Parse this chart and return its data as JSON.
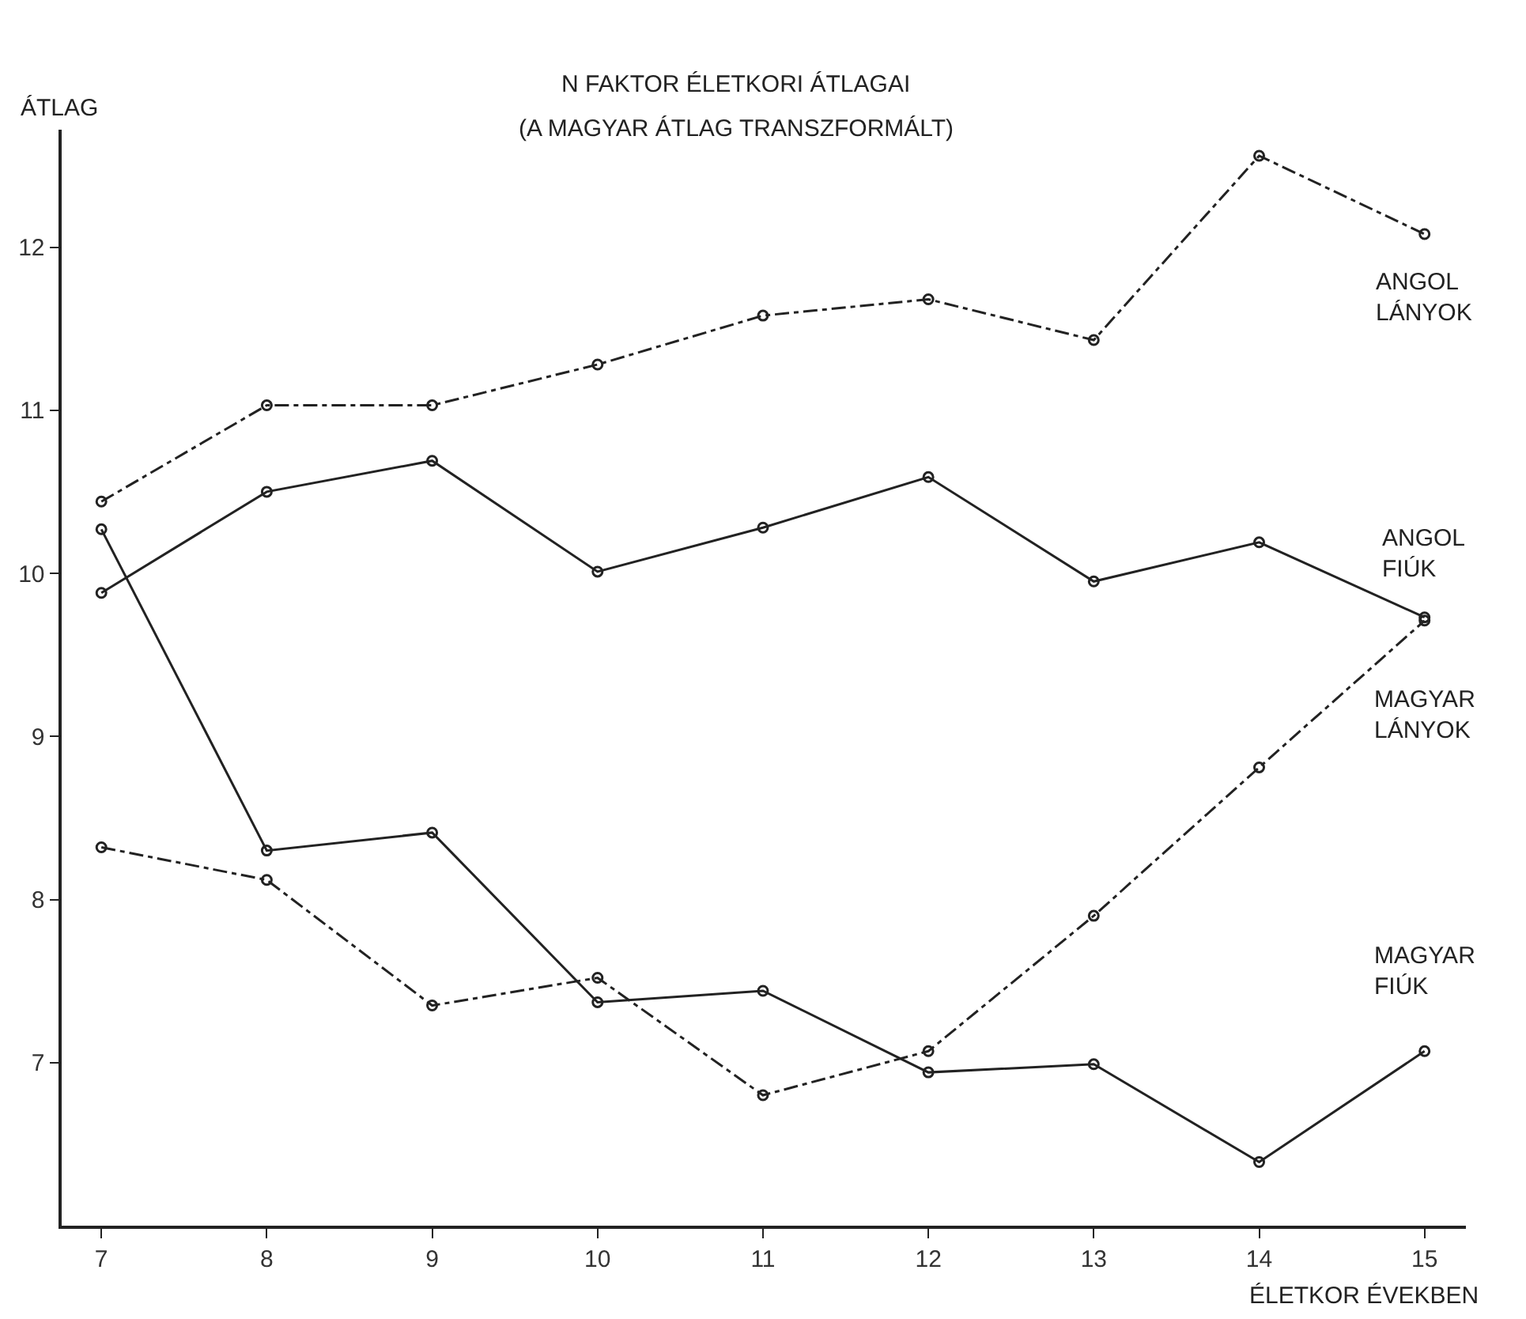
{
  "chart_data": {
    "type": "line",
    "title": "N FAKTOR ÉLETKORI ÁTLAGAI",
    "subtitle": "(A MAGYAR ÁTLAG TRANSZFORMÁLT)",
    "xlabel": "ÉLETKOR ÉVEKBEN",
    "ylabel": "ÁTLAG",
    "x": [
      7,
      8,
      9,
      10,
      11,
      12,
      13,
      14,
      15
    ],
    "series": [
      {
        "name": "ANGOL LÁNYOK",
        "color": "#222222",
        "line_style": "dashdot",
        "values": [
          10.44,
          11.03,
          11.03,
          11.28,
          11.58,
          11.68,
          11.43,
          12.56,
          12.08
        ]
      },
      {
        "name": "ANGOL FIÚK",
        "color": "#222222",
        "line_style": "solid",
        "values": [
          9.88,
          10.5,
          10.69,
          10.01,
          10.28,
          10.59,
          9.95,
          10.19,
          9.73
        ]
      },
      {
        "name": "MAGYAR LÁNYOK",
        "color": "#222222",
        "line_style": "dashdot",
        "values": [
          8.32,
          8.12,
          7.35,
          7.52,
          6.8,
          7.07,
          7.9,
          8.81,
          9.71
        ]
      },
      {
        "name": "MAGYAR FIÚK",
        "color": "#222222",
        "line_style": "solid",
        "values": [
          10.27,
          8.3,
          8.41,
          7.37,
          7.44,
          6.94,
          6.99,
          6.39,
          7.07
        ]
      }
    ],
    "xlim": [
      6.76,
      15.25
    ],
    "ylim": [
      6.0,
      12.72
    ],
    "xticks": [
      7,
      8,
      9,
      10,
      11,
      12,
      13,
      14,
      15
    ],
    "yticks": [
      7,
      8,
      9,
      10,
      11,
      12
    ],
    "grid": false,
    "legend": false,
    "marker": "circle"
  }
}
